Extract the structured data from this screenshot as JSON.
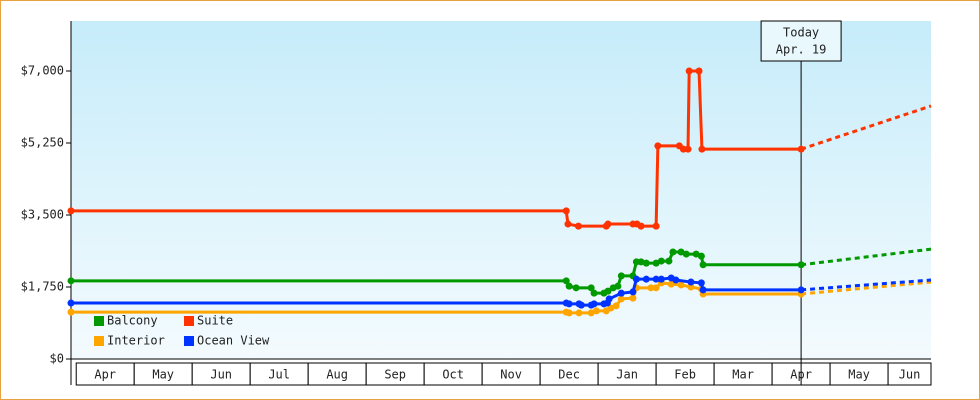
{
  "chart_data": {
    "type": "line",
    "categories": [
      "Apr",
      "May",
      "Jun",
      "Jul",
      "Aug",
      "Sep",
      "Oct",
      "Nov",
      "Dec",
      "Jan",
      "Feb",
      "Mar",
      "Apr",
      "May",
      "Jun"
    ],
    "xlim": [
      -0.09,
      14.74
    ],
    "ylim": [
      0,
      8215
    ],
    "yticks": [
      {
        "value": 0,
        "label": "$0"
      },
      {
        "value": 1750,
        "label": "$1,750"
      },
      {
        "value": 3500,
        "label": "$3,500"
      },
      {
        "value": 5250,
        "label": "$5,250"
      },
      {
        "value": 7000,
        "label": "$7,000"
      }
    ],
    "annotation": {
      "x": 12.5,
      "lines": [
        "Today",
        "Apr. 19"
      ]
    },
    "series": [
      {
        "name": "Balcony",
        "color": "#009900",
        "x": [
          -0.09,
          8.45,
          8.5,
          8.62,
          8.88,
          8.93,
          9.1,
          9.17,
          9.26,
          9.34,
          9.4,
          9.6,
          9.66,
          9.74,
          9.83,
          10.0,
          10.09,
          10.22,
          10.29,
          10.43,
          10.52,
          10.69,
          10.78,
          10.81,
          12.5
        ],
        "values": [
          1900,
          1900,
          1770,
          1730,
          1730,
          1600,
          1600,
          1650,
          1730,
          1770,
          2020,
          2020,
          2360,
          2360,
          2330,
          2330,
          2380,
          2380,
          2600,
          2600,
          2550,
          2550,
          2500,
          2290,
          2290
        ],
        "forecast": {
          "x": [
            12.5,
            14.74
          ],
          "values": [
            2290,
            2670
          ]
        }
      },
      {
        "name": "Suite",
        "color": "#ff3300",
        "x": [
          -0.09,
          8.45,
          8.48,
          8.66,
          9.14,
          9.17,
          9.6,
          9.67,
          9.74,
          10.0,
          10.03,
          10.4,
          10.47,
          10.55,
          10.57,
          10.74,
          10.79,
          12.5
        ],
        "values": [
          3600,
          3600,
          3280,
          3230,
          3230,
          3280,
          3280,
          3280,
          3230,
          3230,
          5180,
          5180,
          5100,
          5100,
          7000,
          7000,
          5100,
          5100
        ],
        "forecast": {
          "x": [
            12.5,
            14.74
          ],
          "values": [
            5100,
            6150
          ]
        }
      },
      {
        "name": "Interior",
        "color": "#ffa500",
        "x": [
          -0.09,
          8.45,
          8.5,
          8.67,
          8.88,
          8.97,
          9.14,
          9.22,
          9.31,
          9.4,
          9.6,
          9.66,
          9.91,
          10.0,
          10.09,
          10.26,
          10.43,
          10.6,
          10.78,
          10.81,
          12.5
        ],
        "values": [
          1140,
          1140,
          1120,
          1120,
          1120,
          1170,
          1170,
          1240,
          1290,
          1460,
          1480,
          1730,
          1730,
          1730,
          1850,
          1820,
          1800,
          1750,
          1700,
          1580,
          1580
        ],
        "forecast": {
          "x": [
            12.5,
            14.74
          ],
          "values": [
            1580,
            1870
          ]
        }
      },
      {
        "name": "Ocean View",
        "color": "#0033ff",
        "x": [
          -0.09,
          8.45,
          8.5,
          8.67,
          8.71,
          8.88,
          8.93,
          9.1,
          9.16,
          9.19,
          9.4,
          9.6,
          9.66,
          9.83,
          10.0,
          10.09,
          10.26,
          10.34,
          10.6,
          10.78,
          10.81,
          12.5
        ],
        "values": [
          1360,
          1360,
          1340,
          1340,
          1310,
          1310,
          1340,
          1340,
          1360,
          1460,
          1600,
          1630,
          1940,
          1940,
          1940,
          1940,
          1970,
          1920,
          1870,
          1850,
          1680,
          1680
        ],
        "forecast": {
          "x": [
            12.5,
            14.74
          ],
          "values": [
            1680,
            1920
          ]
        }
      }
    ]
  }
}
